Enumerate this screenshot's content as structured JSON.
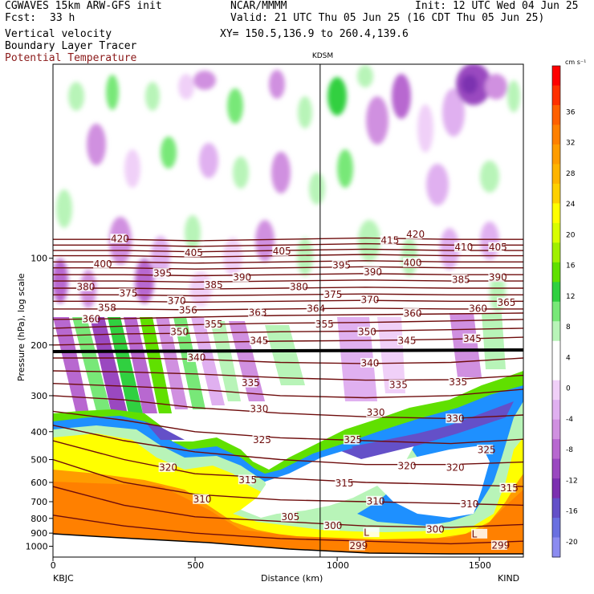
{
  "header": {
    "model": "CGWAVES 15km ARW-GFS init",
    "institution": "NCAR/MMMM",
    "init": "Init: 12 UTC Wed 04 Jun 25",
    "fcst_label": "Fcst:",
    "fcst_value": "33 h",
    "valid": "Valid: 21 UTC Thu 05 Jun 25 (16 CDT Thu 05 Jun 25)",
    "xy": "XY= 150.5,136.9 to 260.4,139.6",
    "fields": [
      {
        "text": "Vertical velocity",
        "color": "#000000"
      },
      {
        "text": "Boundary Layer Tracer",
        "color": "#000000"
      },
      {
        "text": "Potential Temperature",
        "color": "#8b1a1a"
      }
    ]
  },
  "chart_data": {
    "type": "cross-section contour",
    "marker_label": "KDSM",
    "marker_x_km": 940,
    "xlabel": "Distance (km)",
    "ylabel": "Pressure (hPa), log scale",
    "x_ticks": [
      0,
      500,
      1000,
      1500
    ],
    "xlim": [
      0,
      1655
    ],
    "y_scale": "log",
    "y_ticks": [
      100,
      200,
      300,
      400,
      500,
      600,
      700,
      800,
      900,
      1000
    ],
    "endpoint_left": "KBJC",
    "endpoint_right": "KIND",
    "colorbar_unit": "cm s⁻¹",
    "colorbar_ticks": [
      36,
      32,
      28,
      24,
      20,
      16,
      12,
      8,
      4,
      0,
      -4,
      -8,
      -12,
      -16,
      -20
    ],
    "colorbar_colors": [
      "#ff0000",
      "#ff3000",
      "#ff6000",
      "#ff8000",
      "#ff9c00",
      "#ffb400",
      "#ffd000",
      "#ffff00",
      "#d8ff00",
      "#a0f000",
      "#60e000",
      "#30d040",
      "#78e878",
      "#b8f4b8",
      "#ffffff",
      "#ffffff",
      "#f0d0f8",
      "#e0b0f0",
      "#d090e0",
      "#b868d0",
      "#9a48c0",
      "#7c30b0",
      "#6450c8",
      "#6a70e0",
      "#8c8cf0"
    ],
    "theta_levels": [
      299,
      300,
      305,
      310,
      315,
      320,
      325,
      330,
      335,
      340,
      345,
      350,
      355,
      360,
      365,
      370,
      375,
      380,
      385,
      390,
      395,
      400,
      405,
      410,
      415,
      420
    ],
    "theta_labels": [
      {
        "v": "420",
        "x": 230,
        "p": 86
      },
      {
        "v": "415",
        "x": 1180,
        "p": 87
      },
      {
        "v": "420",
        "x": 1270,
        "p": 83
      },
      {
        "v": "410",
        "x": 1440,
        "p": 92
      },
      {
        "v": "405",
        "x": 1560,
        "p": 92
      },
      {
        "v": "405",
        "x": 490,
        "p": 96
      },
      {
        "v": "405",
        "x": 800,
        "p": 95
      },
      {
        "v": "400",
        "x": 170,
        "p": 105
      },
      {
        "v": "400",
        "x": 1260,
        "p": 104
      },
      {
        "v": "395",
        "x": 380,
        "p": 113
      },
      {
        "v": "395",
        "x": 1010,
        "p": 106
      },
      {
        "v": "390",
        "x": 660,
        "p": 117
      },
      {
        "v": "390",
        "x": 1120,
        "p": 112
      },
      {
        "v": "390",
        "x": 1560,
        "p": 117
      },
      {
        "v": "385",
        "x": 560,
        "p": 124
      },
      {
        "v": "385",
        "x": 1430,
        "p": 119
      },
      {
        "v": "380",
        "x": 110,
        "p": 126
      },
      {
        "v": "380",
        "x": 860,
        "p": 126
      },
      {
        "v": "375",
        "x": 260,
        "p": 133
      },
      {
        "v": "375",
        "x": 980,
        "p": 134
      },
      {
        "v": "370",
        "x": 430,
        "p": 141
      },
      {
        "v": "370",
        "x": 1110,
        "p": 140
      },
      {
        "v": "365",
        "x": 1590,
        "p": 143
      },
      {
        "v": "360",
        "x": 130,
        "p": 163
      },
      {
        "v": "360",
        "x": 1260,
        "p": 156
      },
      {
        "v": "360",
        "x": 1490,
        "p": 150
      },
      {
        "v": "350",
        "x": 440,
        "p": 181
      },
      {
        "v": "350",
        "x": 1100,
        "p": 181
      },
      {
        "v": "355",
        "x": 560,
        "p": 170
      },
      {
        "v": "355",
        "x": 950,
        "p": 170
      },
      {
        "v": "345",
        "x": 720,
        "p": 194
      },
      {
        "v": "345",
        "x": 1240,
        "p": 194
      },
      {
        "v": "345",
        "x": 1470,
        "p": 191
      },
      {
        "v": "340",
        "x": 500,
        "p": 222
      },
      {
        "v": "340",
        "x": 1110,
        "p": 232
      },
      {
        "v": "335",
        "x": 690,
        "p": 272
      },
      {
        "v": "335",
        "x": 1210,
        "p": 276
      },
      {
        "v": "335",
        "x": 1420,
        "p": 270
      },
      {
        "v": "330",
        "x": 720,
        "p": 335
      },
      {
        "v": "330",
        "x": 1130,
        "p": 345
      },
      {
        "v": "330",
        "x": 1410,
        "p": 362
      },
      {
        "v": "325",
        "x": 730,
        "p": 429
      },
      {
        "v": "325",
        "x": 1050,
        "p": 429
      },
      {
        "v": "325",
        "x": 1520,
        "p": 464
      },
      {
        "v": "320",
        "x": 400,
        "p": 535
      },
      {
        "v": "320",
        "x": 1240,
        "p": 528
      },
      {
        "v": "320",
        "x": 1410,
        "p": 535
      },
      {
        "v": "315",
        "x": 680,
        "p": 590
      },
      {
        "v": "315",
        "x": 1020,
        "p": 605
      },
      {
        "v": "315",
        "x": 1600,
        "p": 630
      },
      {
        "v": "310",
        "x": 520,
        "p": 690
      },
      {
        "v": "310",
        "x": 1130,
        "p": 699
      },
      {
        "v": "310",
        "x": 1460,
        "p": 717
      },
      {
        "v": "305",
        "x": 830,
        "p": 794
      },
      {
        "v": "300",
        "x": 980,
        "p": 852
      },
      {
        "v": "300",
        "x": 1340,
        "p": 875
      },
      {
        "v": "299",
        "x": 1070,
        "p": 1000
      },
      {
        "v": "299",
        "x": 1570,
        "p": 996
      }
    ],
    "inline_labels": [
      {
        "v": "356",
        "x": 470,
        "p": 152
      },
      {
        "v": "358",
        "x": 185,
        "p": 149
      },
      {
        "v": "363",
        "x": 715,
        "p": 155
      },
      {
        "v": "364",
        "x": 920,
        "p": 150
      }
    ],
    "L_markers": [
      {
        "v": "L",
        "x": 1120,
        "p": 900
      },
      {
        "v": "L",
        "x": 1500,
        "p": 910
      }
    ],
    "grid": false
  }
}
